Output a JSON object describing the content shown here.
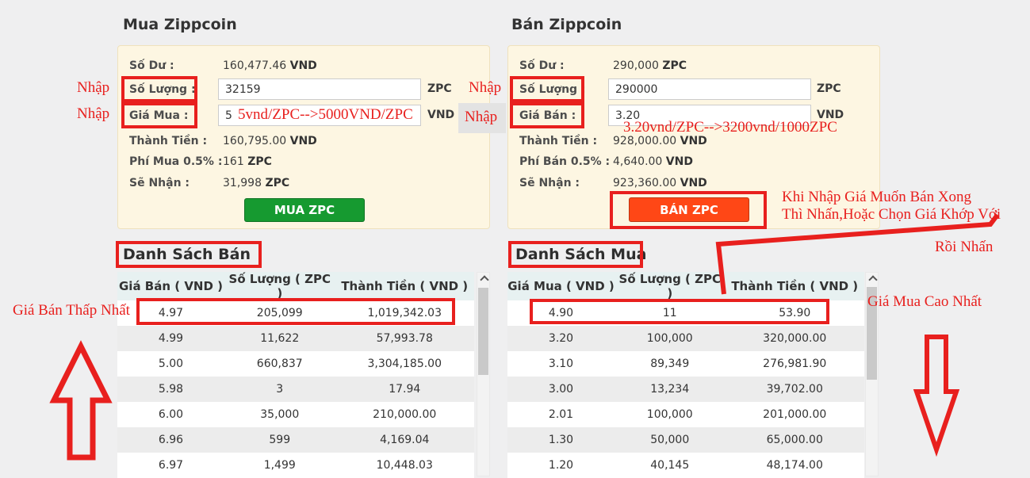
{
  "buy_panel": {
    "title": "Mua Zippcoin",
    "balance_label": "Số Dư :",
    "balance_value": "160,477.46",
    "balance_unit": "VND",
    "quantity_label": "Số Lượng :",
    "quantity_value": "32159",
    "quantity_unit": "ZPC",
    "price_label": "Giá Mua :",
    "price_value": "5",
    "price_unit": "VND",
    "total_label": "Thành Tiền :",
    "total_value": "160,795.00",
    "total_unit": "VND",
    "fee_label": "Phí Mua 0.5% :",
    "fee_value": "161",
    "fee_unit": "ZPC",
    "receive_label": "Sẽ Nhận :",
    "receive_value": "31,998",
    "receive_unit": "ZPC",
    "button_label": "MUA ZPC",
    "button_color": "#169a30"
  },
  "sell_panel": {
    "title": "Bán Zippcoin",
    "balance_label": "Số Dư :",
    "balance_value": "290,000",
    "balance_unit": "ZPC",
    "quantity_label": "Số Lượng :",
    "quantity_value": "290000",
    "quantity_unit": "ZPC",
    "price_label": "Giá Bán :",
    "price_value": "3.20",
    "price_unit": "VND",
    "total_label": "Thành Tiền :",
    "total_value": "928,000.00",
    "total_unit": "VND",
    "fee_label": "Phí Bán 0.5% :",
    "fee_value": "4,640.00",
    "fee_unit": "VND",
    "receive_label": "Sẽ Nhận :",
    "receive_value": "923,360.00",
    "receive_unit": "VND",
    "button_label": "BÁN ZPC",
    "button_color": "#ff4716"
  },
  "sell_table": {
    "title": "Danh Sách Bán",
    "headers": [
      "Giá Bán ( VND )",
      "Số Lượng ( ZPC )",
      "Thành Tiền ( VND )"
    ],
    "rows": [
      [
        "4.97",
        "205,099",
        "1,019,342.03"
      ],
      [
        "4.99",
        "11,622",
        "57,993.78"
      ],
      [
        "5.00",
        "660,837",
        "3,304,185.00"
      ],
      [
        "5.98",
        "3",
        "17.94"
      ],
      [
        "6.00",
        "35,000",
        "210,000.00"
      ],
      [
        "6.96",
        "599",
        "4,169.04"
      ],
      [
        "6.97",
        "1,499",
        "10,448.03"
      ]
    ]
  },
  "buy_table": {
    "title": "Danh Sách Mua",
    "headers": [
      "Giá Mua ( VND )",
      "Số Lượng ( ZPC )",
      "Thành Tiền ( VND )"
    ],
    "rows": [
      [
        "4.90",
        "11",
        "53.90"
      ],
      [
        "3.20",
        "100,000",
        "320,000.00"
      ],
      [
        "3.10",
        "89,349",
        "276,981.90"
      ],
      [
        "3.00",
        "13,234",
        "39,702.00"
      ],
      [
        "2.01",
        "100,000",
        "201,000.00"
      ],
      [
        "1.30",
        "50,000",
        "65,000.00"
      ],
      [
        "1.20",
        "40,145",
        "48,174.00"
      ]
    ]
  },
  "annotations": {
    "red_color": "#e8201e",
    "nhap": "Nhập",
    "buy_price_note": "5vnd/ZPC-->5000VND/ZPC",
    "sell_price_note": "3.20vnd/ZPC-->3200vnd/1000ZPC",
    "sell_button_note_line1": "Khi Nhập Giá Muốn Bán Xong",
    "sell_button_note_line2": "Thì Nhấn,Hoặc Chọn Giá Khớp Với",
    "then_click": "Rồi Nhấn",
    "lowest_sell_price": "Giá Bán Thấp Nhất",
    "highest_buy_price": "Giá Mua Cao Nhất"
  }
}
